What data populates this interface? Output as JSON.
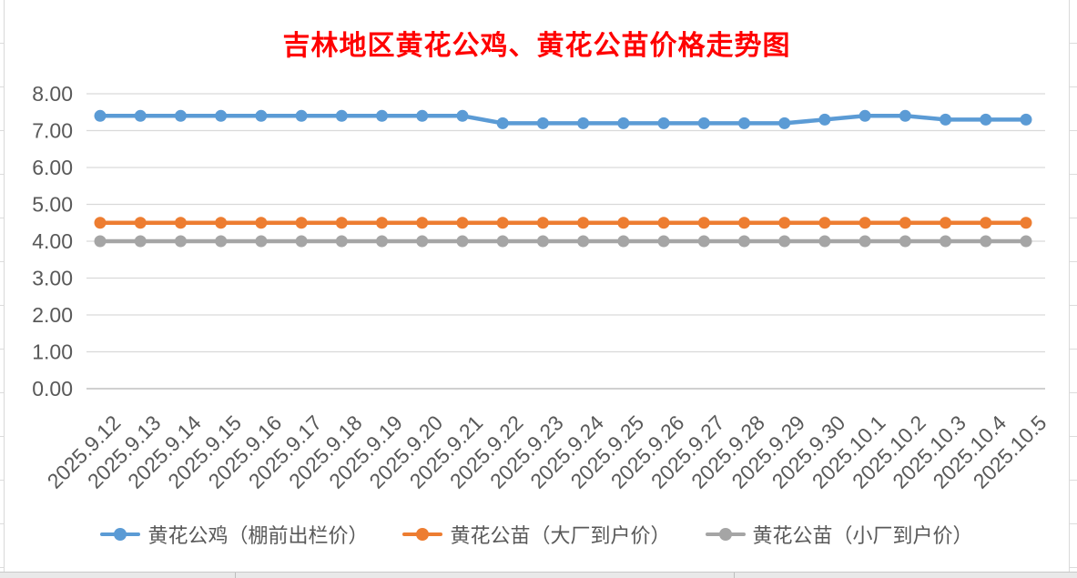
{
  "chart_data": {
    "type": "line",
    "title": "吉林地区黄花公鸡、黄花公苗价格走势图",
    "title_color": "#FF0000",
    "categories": [
      "2025.9.12",
      "2025.9.13",
      "2025.9.14",
      "2025.9.15",
      "2025.9.16",
      "2025.9.17",
      "2025.9.18",
      "2025.9.19",
      "2025.9.20",
      "2025.9.21",
      "2025.9.22",
      "2025.9.23",
      "2025.9.24",
      "2025.9.25",
      "2025.9.26",
      "2025.9.27",
      "2025.9.28",
      "2025.9.29",
      "2025.9.30",
      "2025.10.1",
      "2025.10.2",
      "2025.10.3",
      "2025.10.4",
      "2025.10.5"
    ],
    "series": [
      {
        "name": "黄花公鸡（棚前出栏价）",
        "color": "#5B9BD5",
        "values": [
          7.4,
          7.4,
          7.4,
          7.4,
          7.4,
          7.4,
          7.4,
          7.4,
          7.4,
          7.4,
          7.2,
          7.2,
          7.2,
          7.2,
          7.2,
          7.2,
          7.2,
          7.2,
          7.3,
          7.4,
          7.4,
          7.3,
          7.3,
          7.3
        ]
      },
      {
        "name": "黄花公苗（大厂到户价）",
        "color": "#ED7D31",
        "values": [
          4.5,
          4.5,
          4.5,
          4.5,
          4.5,
          4.5,
          4.5,
          4.5,
          4.5,
          4.5,
          4.5,
          4.5,
          4.5,
          4.5,
          4.5,
          4.5,
          4.5,
          4.5,
          4.5,
          4.5,
          4.5,
          4.5,
          4.5,
          4.5
        ]
      },
      {
        "name": "黄花公苗（小厂到户价）",
        "color": "#A5A5A5",
        "values": [
          4.0,
          4.0,
          4.0,
          4.0,
          4.0,
          4.0,
          4.0,
          4.0,
          4.0,
          4.0,
          4.0,
          4.0,
          4.0,
          4.0,
          4.0,
          4.0,
          4.0,
          4.0,
          4.0,
          4.0,
          4.0,
          4.0,
          4.0,
          4.0
        ]
      }
    ],
    "y_axis": {
      "min": 0,
      "max": 8,
      "step": 1,
      "tick_labels": [
        "0.00",
        "1.00",
        "2.00",
        "3.00",
        "4.00",
        "5.00",
        "6.00",
        "7.00",
        "8.00"
      ]
    },
    "x_axis": {
      "label_rotation_deg": 45
    },
    "grid": true,
    "legend_position": "bottom",
    "gridline_color": "#D9D9D9",
    "axis_line_color": "#D0D0D0",
    "axis_text_color": "#595959"
  }
}
